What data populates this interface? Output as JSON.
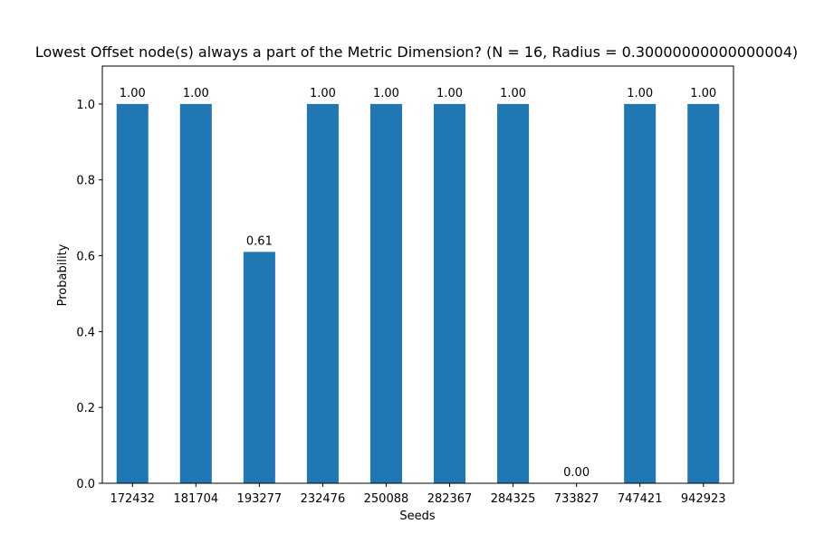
{
  "chart_data": {
    "type": "bar",
    "title": "Lowest Offset node(s) always a part of the Metric Dimension? (N = 16, Radius = 0.30000000000000004)",
    "xlabel": "Seeds",
    "ylabel": "Probability",
    "categories": [
      "172432",
      "181704",
      "193277",
      "232476",
      "250088",
      "282367",
      "284325",
      "733827",
      "747421",
      "942923"
    ],
    "values": [
      1.0,
      1.0,
      0.61,
      1.0,
      1.0,
      1.0,
      1.0,
      0.0,
      1.0,
      1.0
    ],
    "data_labels": [
      "1.00",
      "1.00",
      "0.61",
      "1.00",
      "1.00",
      "1.00",
      "1.00",
      "0.00",
      "1.00",
      "1.00"
    ],
    "ylim": [
      0,
      1.1
    ],
    "yticks": [
      "0.0",
      "0.2",
      "0.4",
      "0.6",
      "0.8",
      "1.0"
    ],
    "bar_color": "#1f77b4",
    "grid": false,
    "legend": "none"
  }
}
